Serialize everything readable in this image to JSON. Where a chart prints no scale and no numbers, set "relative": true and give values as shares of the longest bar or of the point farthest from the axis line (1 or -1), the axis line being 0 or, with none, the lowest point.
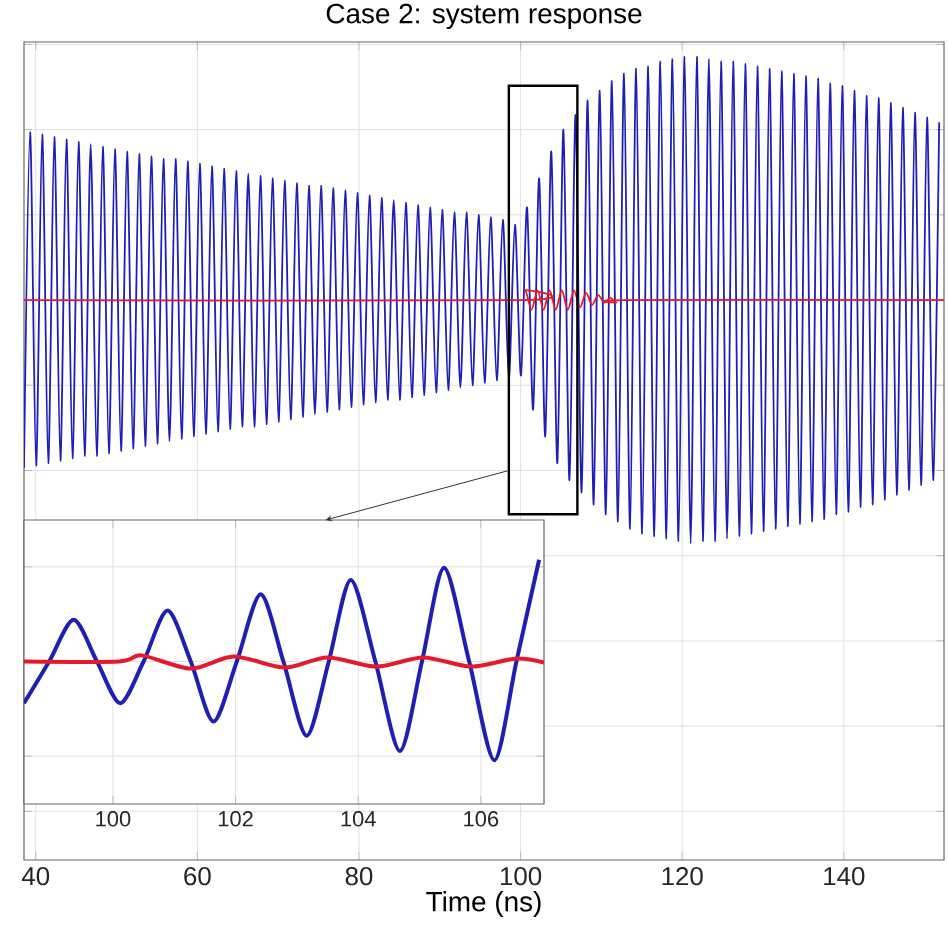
{
  "chart_data": [
    {
      "type": "line",
      "title": "Case 2: system response",
      "xlabel": "Time (ns)",
      "relative": true,
      "xlim": [
        38.55,
        152.4
      ],
      "xticks": [
        40,
        60,
        80,
        100,
        120,
        140
      ],
      "grid": true,
      "tick_labels": "x",
      "series": [
        {
          "color": "#1f1fb4",
          "x": [
            38.55,
            39.3,
            40.05,
            40.8,
            41.55,
            42.3,
            43.05,
            43.8,
            44.55,
            45.3,
            46.05,
            46.8,
            47.55,
            48.3,
            49.05,
            49.8,
            50.55,
            51.3,
            52.05,
            52.8,
            53.55,
            54.3,
            55.05,
            55.8,
            56.55,
            57.3,
            58.05,
            58.8,
            59.55,
            60.3,
            61.05,
            61.8,
            62.55,
            63.3,
            64.05,
            64.8,
            65.55,
            66.3,
            67.05,
            67.8,
            68.55,
            69.3,
            70.05,
            70.8,
            71.55,
            72.3,
            73.05,
            73.8,
            74.55,
            75.3,
            76.05,
            76.8,
            77.55,
            78.3,
            79.05,
            79.8,
            80.55,
            81.3,
            82.05,
            82.8,
            83.55,
            84.3,
            85.05,
            85.8,
            86.55,
            87.3,
            88.05,
            88.8,
            89.55,
            90.3,
            91.05,
            91.8,
            92.55,
            93.3,
            94.05,
            94.8,
            95.55,
            96.3,
            97.05,
            97.8,
            98.55,
            99.3,
            100.05,
            100.8,
            101.55,
            102.3,
            103.05,
            103.8,
            104.55,
            105.3,
            106.05,
            106.8,
            107.55,
            108.3,
            109.05,
            109.8,
            110.55,
            111.3,
            112.05,
            112.8,
            113.55,
            114.3,
            115.05,
            115.8,
            116.55,
            117.3,
            118.05,
            118.8,
            119.55,
            120.3,
            121.05,
            121.8,
            122.55,
            123.3,
            124.05,
            124.8,
            125.55,
            126.3,
            127.05,
            127.8,
            128.55,
            129.3,
            130.05,
            130.8,
            131.55,
            132.3,
            133.05,
            133.8,
            134.55,
            135.3,
            136.05,
            136.8,
            137.55,
            138.3,
            139.05,
            139.8,
            140.55,
            141.3,
            142.05,
            142.8,
            143.55,
            144.3,
            145.05,
            145.8,
            146.55,
            147.3,
            148.05,
            148.8,
            149.55,
            150.3,
            151.05,
            151.8
          ],
          "values": [
            -0.69,
            0.69,
            -0.68,
            0.68,
            -0.67,
            0.67,
            -0.66,
            0.66,
            -0.65,
            0.65,
            -0.64,
            0.64,
            -0.64,
            0.63,
            -0.63,
            0.62,
            -0.62,
            0.61,
            -0.61,
            0.6,
            -0.6,
            0.59,
            -0.59,
            0.58,
            -0.58,
            0.58,
            -0.57,
            0.57,
            -0.56,
            0.56,
            -0.55,
            0.55,
            -0.54,
            0.54,
            -0.53,
            0.53,
            -0.52,
            0.52,
            -0.52,
            0.51,
            -0.51,
            0.5,
            -0.5,
            0.49,
            -0.49,
            0.48,
            -0.48,
            0.47,
            -0.47,
            0.47,
            -0.46,
            0.46,
            -0.45,
            0.45,
            -0.44,
            0.44,
            -0.43,
            0.43,
            -0.42,
            0.42,
            -0.41,
            0.41,
            -0.41,
            0.4,
            -0.4,
            0.39,
            -0.39,
            0.38,
            -0.38,
            0.37,
            -0.37,
            0.36,
            -0.36,
            0.36,
            -0.35,
            0.35,
            -0.34,
            0.34,
            -0.33,
            0.33,
            -0.32,
            0.31,
            -0.31,
            0.38,
            -0.45,
            0.5,
            -0.56,
            0.61,
            -0.67,
            0.7,
            -0.74,
            0.76,
            -0.79,
            0.82,
            -0.84,
            0.86,
            -0.88,
            0.9,
            -0.91,
            0.93,
            -0.94,
            0.95,
            -0.96,
            0.96,
            -0.97,
            0.98,
            -0.98,
            0.99,
            -0.99,
            1.0,
            -1.0,
            1.0,
            -0.99,
            0.99,
            -0.99,
            0.98,
            -0.98,
            0.98,
            -0.97,
            0.97,
            -0.96,
            0.96,
            -0.95,
            0.95,
            -0.94,
            0.94,
            -0.93,
            0.93,
            -0.92,
            0.92,
            -0.91,
            0.91,
            -0.9,
            0.89,
            -0.88,
            0.88,
            -0.87,
            0.86,
            -0.85,
            0.84,
            -0.84,
            0.83,
            -0.82,
            0.81,
            -0.8,
            0.79,
            -0.78,
            0.77,
            -0.76,
            0.75,
            -0.74,
            0.73
          ]
        },
        {
          "color": "#e4192b",
          "x": [
            38.55,
            100.0,
            100.6,
            101.35,
            102.1,
            102.85,
            103.6,
            104.35,
            105.1,
            105.85,
            106.6,
            107.35,
            108.1,
            108.85,
            109.6,
            110.35,
            111.1,
            111.85,
            113.0,
            152.4
          ],
          "values": [
            0,
            0,
            0.04,
            -0.04,
            0.04,
            -0.04,
            0.04,
            -0.04,
            0.04,
            -0.04,
            0.04,
            -0.03,
            0.03,
            -0.02,
            0.02,
            -0.01,
            0.01,
            -0.01,
            0,
            0
          ]
        }
      ]
    },
    {
      "type": "line",
      "relative": true,
      "xlim": [
        98.55,
        107.03
      ],
      "xticks": [
        100,
        102,
        104,
        106
      ],
      "grid": true,
      "tick_labels": "x",
      "series": [
        {
          "color": "#1f1fb4",
          "x": [
            98.55,
            98.96,
            99.36,
            99.74,
            100.12,
            100.5,
            100.89,
            101.27,
            101.64,
            102.02,
            102.41,
            102.78,
            103.16,
            103.52,
            103.88,
            104.28,
            104.68,
            105.04,
            105.4,
            105.81,
            106.22,
            106.58,
            106.95
          ],
          "values": [
            -0.41,
            0,
            0.41,
            0,
            -0.41,
            0,
            0.5,
            0,
            -0.59,
            0,
            0.66,
            0,
            -0.73,
            0,
            0.8,
            0,
            -0.88,
            0,
            0.92,
            0,
            -0.97,
            0,
            1.0
          ]
        },
        {
          "color": "#e4192b",
          "x": [
            98.55,
            100.1,
            100.47,
            101.27,
            101.97,
            102.8,
            103.5,
            104.3,
            105.06,
            105.84,
            106.58,
            107.03
          ],
          "values": [
            0,
            0,
            0.06,
            -0.07,
            0.05,
            -0.06,
            0.04,
            -0.05,
            0.04,
            -0.05,
            0.03,
            -0.01
          ]
        }
      ]
    }
  ]
}
